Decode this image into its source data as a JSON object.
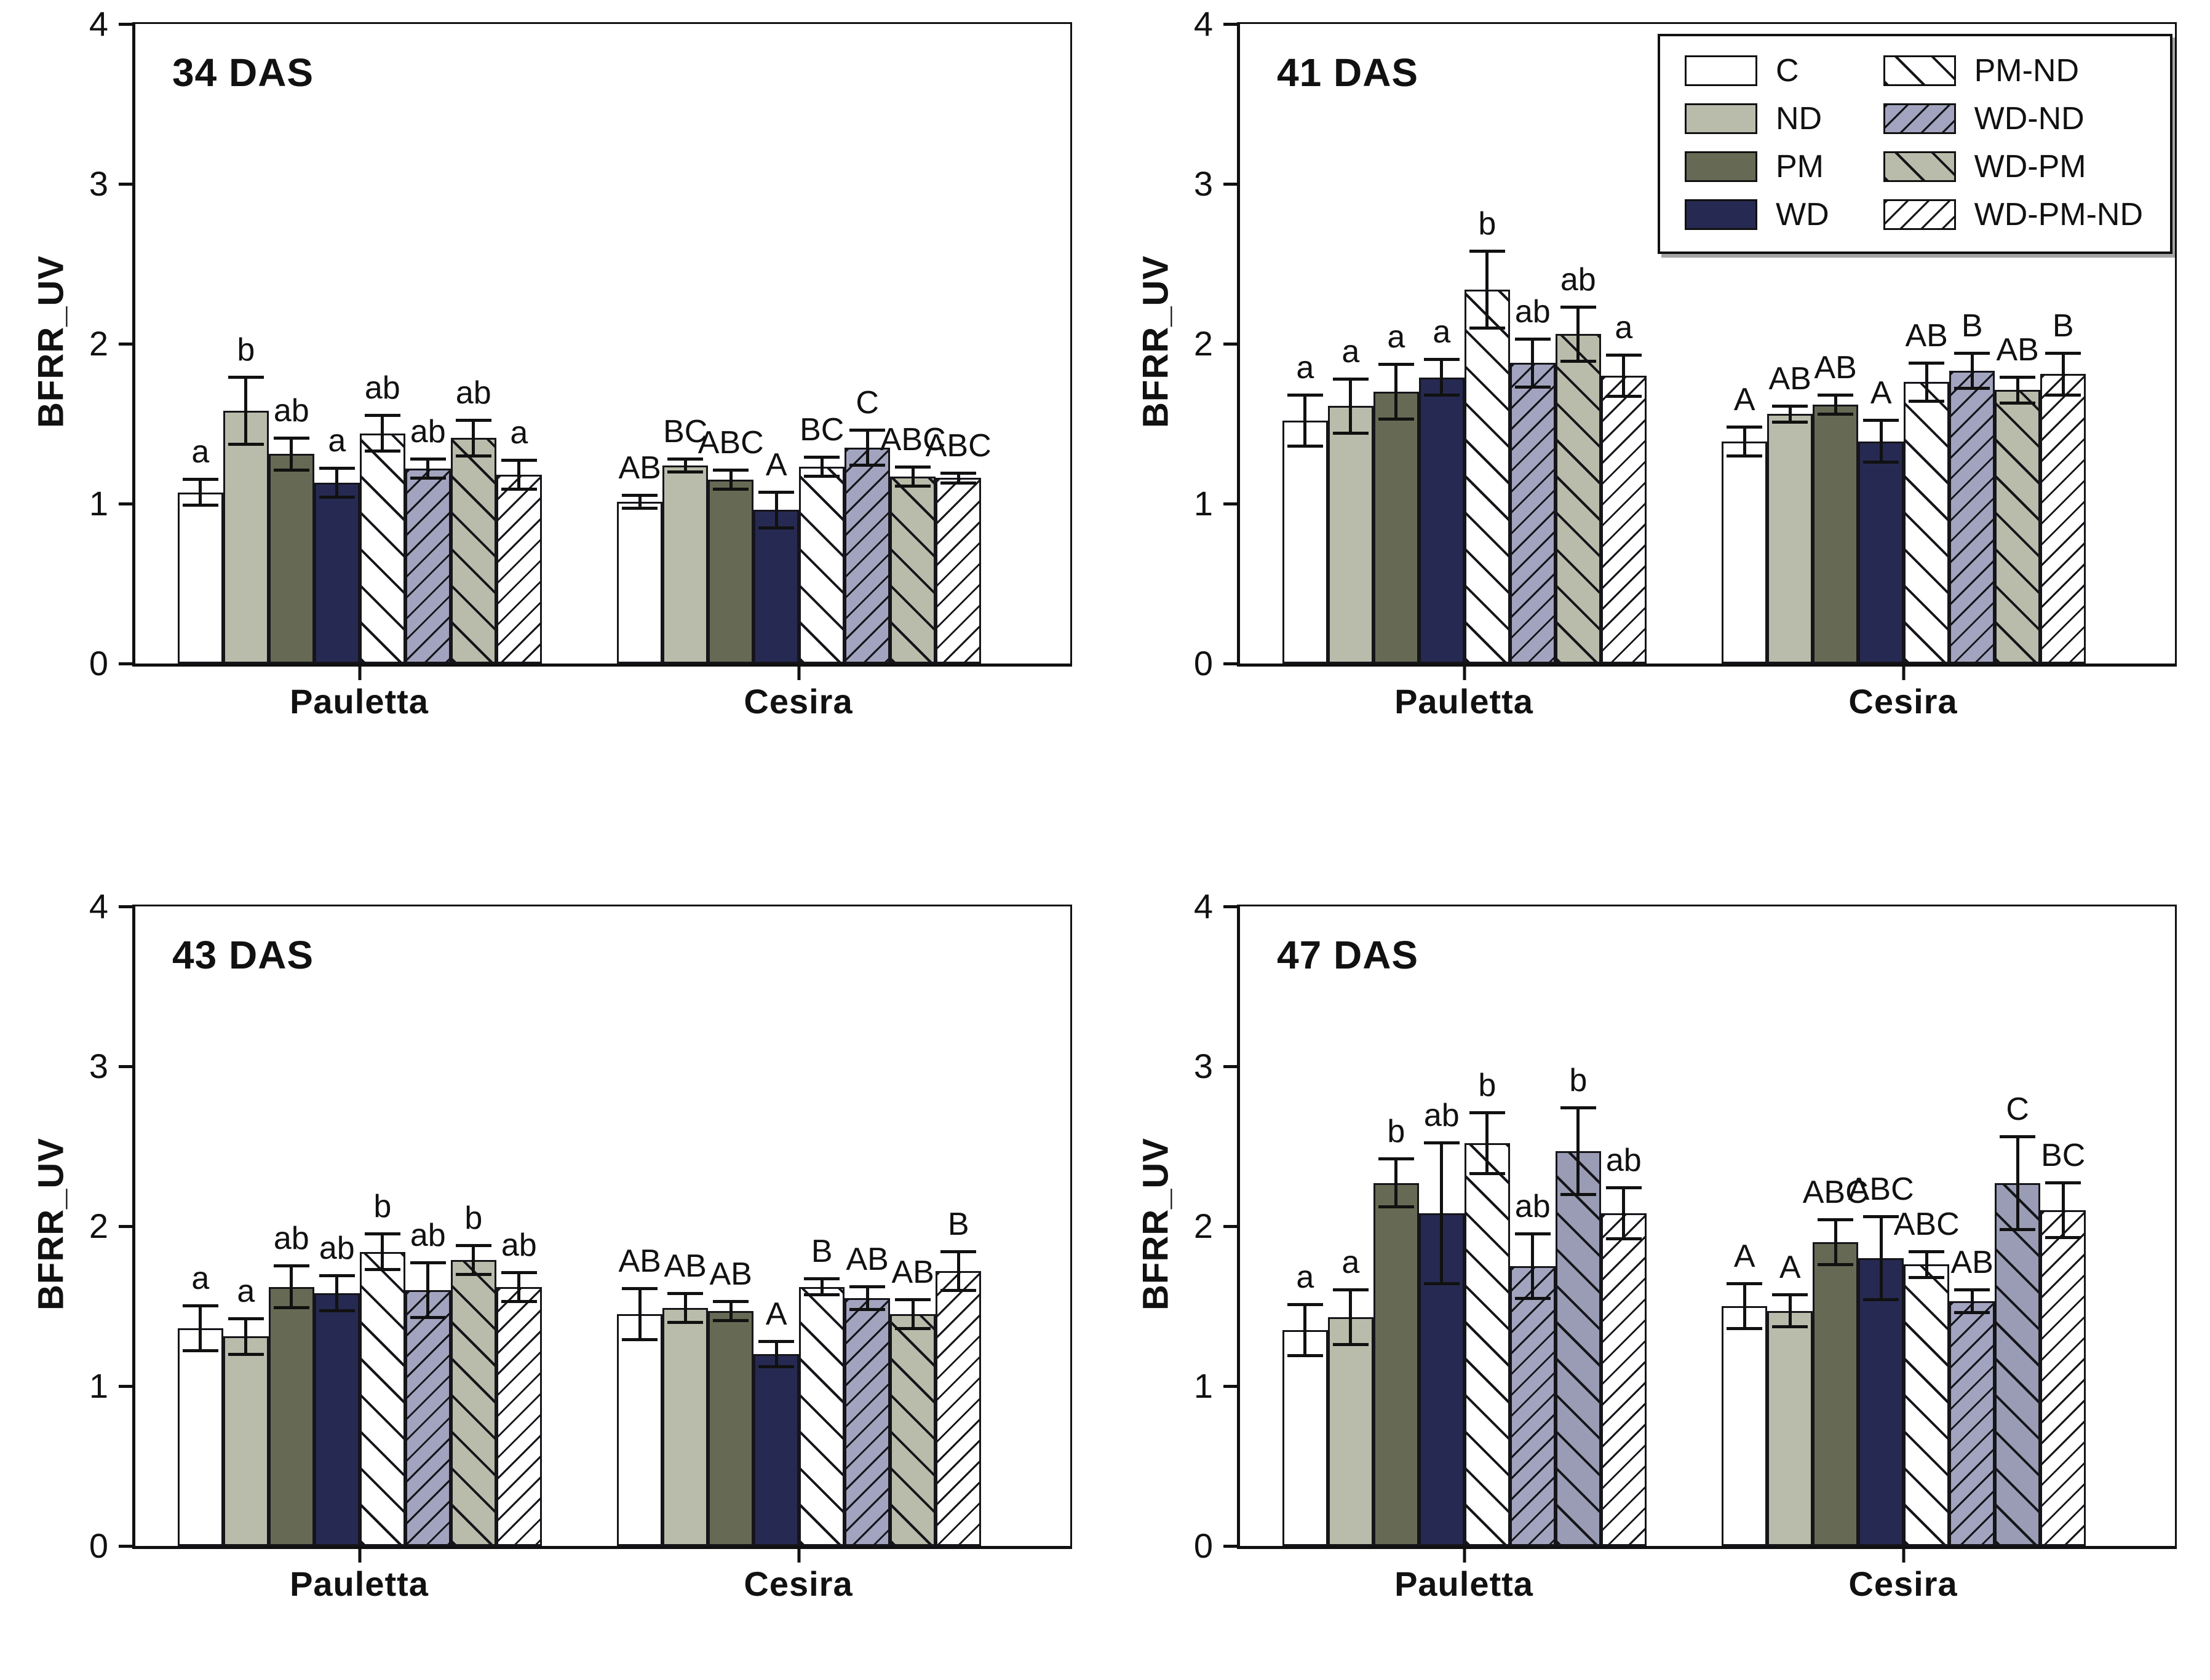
{
  "chart_data": {
    "type": "bar",
    "title": "",
    "ylabel": "BFRR_UV",
    "ylim": [
      0,
      4
    ],
    "yticks": [
      0,
      1,
      2,
      3,
      4
    ],
    "grid": "off",
    "legend_position": "top-right of 41 DAS panel",
    "group_categories": [
      "Pauletta",
      "Cesira"
    ],
    "treatments": [
      {
        "key": "C",
        "label": "C",
        "fill": "#ffffff",
        "hatch": "none"
      },
      {
        "key": "ND",
        "label": "ND",
        "fill": "#babcab",
        "hatch": "none"
      },
      {
        "key": "PM",
        "label": "PM",
        "fill": "#666a54",
        "hatch": "none"
      },
      {
        "key": "WD",
        "label": "WD",
        "fill": "#262a52",
        "hatch": "none"
      },
      {
        "key": "PM-ND",
        "label": "PM-ND",
        "fill": "#ffffff",
        "hatch": "coarse"
      },
      {
        "key": "WD-ND",
        "label": "WD-ND",
        "fill": "#a2a4bf",
        "hatch": "fine"
      },
      {
        "key": "WD-PM",
        "label": "WD-PM",
        "fill": "#babcab",
        "hatch": "coarse"
      },
      {
        "key": "WD-PM-ND",
        "label": "WD-PM-ND",
        "fill": "#ffffff",
        "hatch": "fine"
      }
    ],
    "panels": [
      {
        "title": "34 DAS",
        "legend": false,
        "groups": [
          {
            "name": "Pauletta",
            "bars": [
              {
                "t": "C",
                "value": 1.07,
                "err": 0.09,
                "letter": "a"
              },
              {
                "t": "ND",
                "value": 1.58,
                "err": 0.22,
                "letter": "b"
              },
              {
                "t": "PM",
                "value": 1.31,
                "err": 0.11,
                "letter": "ab"
              },
              {
                "t": "WD",
                "value": 1.13,
                "err": 0.1,
                "letter": "a"
              },
              {
                "t": "PM-ND",
                "value": 1.44,
                "err": 0.12,
                "letter": "ab"
              },
              {
                "t": "WD-ND",
                "value": 1.22,
                "err": 0.07,
                "letter": "ab"
              },
              {
                "t": "WD-PM",
                "value": 1.41,
                "err": 0.12,
                "letter": "ab"
              },
              {
                "t": "WD-PM-ND",
                "value": 1.18,
                "err": 0.1,
                "letter": "a"
              }
            ]
          },
          {
            "name": "Cesira",
            "bars": [
              {
                "t": "C",
                "value": 1.01,
                "err": 0.05,
                "letter": "AB"
              },
              {
                "t": "ND",
                "value": 1.24,
                "err": 0.05,
                "letter": "BC"
              },
              {
                "t": "PM",
                "value": 1.15,
                "err": 0.07,
                "letter": "ABC"
              },
              {
                "t": "WD",
                "value": 0.96,
                "err": 0.12,
                "letter": "A"
              },
              {
                "t": "PM-ND",
                "value": 1.23,
                "err": 0.07,
                "letter": "BC"
              },
              {
                "t": "WD-ND",
                "value": 1.35,
                "err": 0.12,
                "letter": "C"
              },
              {
                "t": "WD-PM",
                "value": 1.17,
                "err": 0.07,
                "letter": "ABC"
              },
              {
                "t": "WD-PM-ND",
                "value": 1.16,
                "err": 0.04,
                "letter": "ABC"
              }
            ]
          }
        ]
      },
      {
        "title": "41 DAS",
        "legend": true,
        "groups": [
          {
            "name": "Pauletta",
            "bars": [
              {
                "t": "C",
                "value": 1.52,
                "err": 0.17,
                "letter": "a"
              },
              {
                "t": "ND",
                "value": 1.61,
                "err": 0.18,
                "letter": "a"
              },
              {
                "t": "PM",
                "value": 1.7,
                "err": 0.18,
                "letter": "a"
              },
              {
                "t": "WD",
                "value": 1.79,
                "err": 0.12,
                "letter": "a"
              },
              {
                "t": "PM-ND",
                "value": 2.34,
                "err": 0.25,
                "letter": "b"
              },
              {
                "t": "WD-ND",
                "value": 1.88,
                "err": 0.16,
                "letter": "ab"
              },
              {
                "t": "WD-PM",
                "value": 2.06,
                "err": 0.18,
                "letter": "ab"
              },
              {
                "t": "WD-PM-ND",
                "value": 1.8,
                "err": 0.14,
                "letter": "a"
              }
            ]
          },
          {
            "name": "Cesira",
            "bars": [
              {
                "t": "C",
                "value": 1.39,
                "err": 0.1,
                "letter": "A"
              },
              {
                "t": "ND",
                "value": 1.56,
                "err": 0.06,
                "letter": "AB"
              },
              {
                "t": "PM",
                "value": 1.62,
                "err": 0.07,
                "letter": "AB"
              },
              {
                "t": "WD",
                "value": 1.39,
                "err": 0.14,
                "letter": "A"
              },
              {
                "t": "PM-ND",
                "value": 1.76,
                "err": 0.13,
                "letter": "AB"
              },
              {
                "t": "WD-ND",
                "value": 1.83,
                "err": 0.12,
                "letter": "B"
              },
              {
                "t": "WD-PM",
                "value": 1.71,
                "err": 0.09,
                "letter": "AB"
              },
              {
                "t": "WD-PM-ND",
                "value": 1.81,
                "err": 0.14,
                "letter": "B"
              }
            ]
          }
        ]
      },
      {
        "title": "43 DAS",
        "legend": false,
        "groups": [
          {
            "name": "Pauletta",
            "bars": [
              {
                "t": "C",
                "value": 1.36,
                "err": 0.15,
                "letter": "a"
              },
              {
                "t": "ND",
                "value": 1.31,
                "err": 0.12,
                "letter": "a"
              },
              {
                "t": "PM",
                "value": 1.62,
                "err": 0.14,
                "letter": "ab"
              },
              {
                "t": "WD",
                "value": 1.58,
                "err": 0.12,
                "letter": "ab"
              },
              {
                "t": "PM-ND",
                "value": 1.84,
                "err": 0.12,
                "letter": "b"
              },
              {
                "t": "WD-ND",
                "value": 1.6,
                "err": 0.18,
                "letter": "ab"
              },
              {
                "t": "WD-PM",
                "value": 1.79,
                "err": 0.1,
                "letter": "b"
              },
              {
                "t": "WD-PM-ND",
                "value": 1.62,
                "err": 0.1,
                "letter": "ab"
              }
            ]
          },
          {
            "name": "Cesira",
            "bars": [
              {
                "t": "C",
                "value": 1.45,
                "err": 0.17,
                "letter": "AB"
              },
              {
                "t": "ND",
                "value": 1.49,
                "err": 0.1,
                "letter": "AB"
              },
              {
                "t": "PM",
                "value": 1.47,
                "err": 0.07,
                "letter": "AB"
              },
              {
                "t": "WD",
                "value": 1.2,
                "err": 0.09,
                "letter": "A"
              },
              {
                "t": "PM-ND",
                "value": 1.62,
                "err": 0.06,
                "letter": "B"
              },
              {
                "t": "WD-ND",
                "value": 1.55,
                "err": 0.08,
                "letter": "AB"
              },
              {
                "t": "WD-PM",
                "value": 1.45,
                "err": 0.1,
                "letter": "AB"
              },
              {
                "t": "WD-PM-ND",
                "value": 1.72,
                "err": 0.13,
                "letter": "B"
              }
            ]
          }
        ]
      },
      {
        "title": "47 DAS",
        "legend": false,
        "groups": [
          {
            "name": "Pauletta",
            "bars": [
              {
                "t": "C",
                "value": 1.35,
                "err": 0.17,
                "letter": "a"
              },
              {
                "t": "ND",
                "value": 1.43,
                "err": 0.18,
                "letter": "a"
              },
              {
                "t": "PM",
                "value": 2.27,
                "err": 0.16,
                "letter": "b"
              },
              {
                "t": "WD",
                "value": 2.08,
                "err": 0.45,
                "letter": "ab"
              },
              {
                "t": "PM-ND",
                "value": 2.52,
                "err": 0.2,
                "letter": "b"
              },
              {
                "t": "WD-ND",
                "value": 1.75,
                "err": 0.21,
                "letter": "ab"
              },
              {
                "t": "WD-PM",
                "value": 2.47,
                "err": 0.28,
                "letter": "b",
                "fill": "#9a9cb5"
              },
              {
                "t": "WD-PM-ND",
                "value": 2.08,
                "err": 0.17,
                "letter": "ab"
              }
            ]
          },
          {
            "name": "Cesira",
            "bars": [
              {
                "t": "C",
                "value": 1.5,
                "err": 0.15,
                "letter": "A"
              },
              {
                "t": "ND",
                "value": 1.47,
                "err": 0.11,
                "letter": "A"
              },
              {
                "t": "PM",
                "value": 1.9,
                "err": 0.15,
                "letter": "ABC"
              },
              {
                "t": "WD",
                "value": 1.8,
                "err": 0.27,
                "letter": "ABC"
              },
              {
                "t": "PM-ND",
                "value": 1.76,
                "err": 0.09,
                "letter": "ABC"
              },
              {
                "t": "WD-ND",
                "value": 1.53,
                "err": 0.08,
                "letter": "AB"
              },
              {
                "t": "WD-PM",
                "value": 2.27,
                "err": 0.3,
                "letter": "C",
                "fill": "#9a9cb5"
              },
              {
                "t": "WD-PM-ND",
                "value": 2.1,
                "err": 0.18,
                "letter": "BC"
              }
            ]
          }
        ]
      }
    ]
  }
}
